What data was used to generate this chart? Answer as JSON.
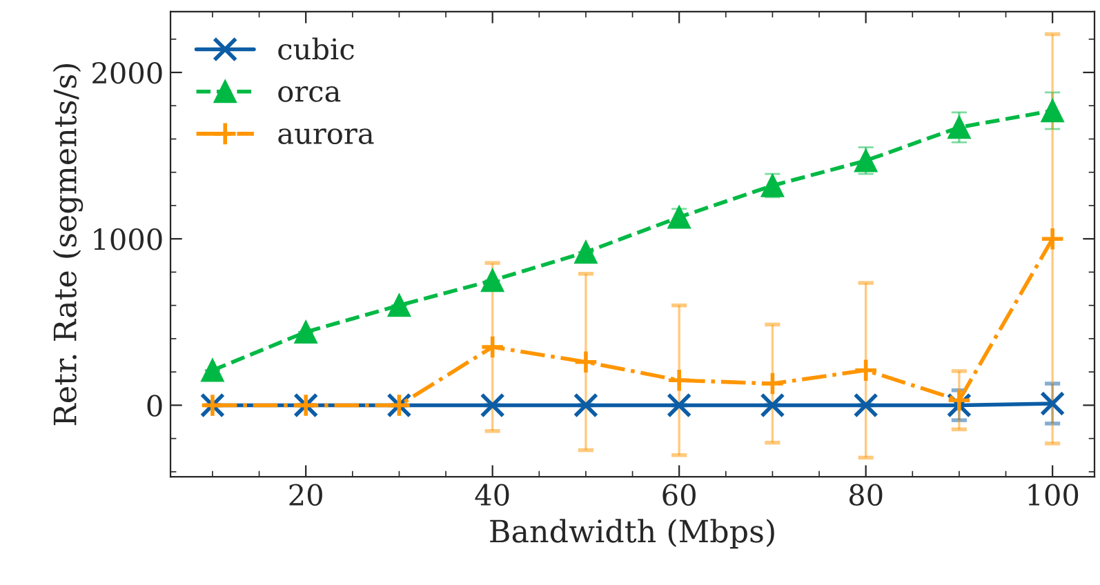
{
  "chart_data": {
    "type": "line",
    "xlabel": "Bandwidth (Mbps)",
    "ylabel": "Retr. Rate (segments/s)",
    "x": [
      10,
      20,
      30,
      40,
      50,
      60,
      70,
      80,
      90,
      100
    ],
    "xlim": [
      5.5,
      104.5
    ],
    "xticks": [
      20,
      40,
      60,
      80,
      100
    ],
    "ylim": [
      -430,
      2365
    ],
    "yticks": [
      0,
      1000,
      2000
    ],
    "legend": "top left",
    "grid": false,
    "series": [
      {
        "name": "cubic",
        "color": "#0c5da5",
        "marker": "cross",
        "line_style": "solid",
        "values": [
          0,
          0,
          0,
          0,
          0,
          0,
          0,
          0,
          0,
          10
        ],
        "errors": [
          null,
          null,
          null,
          null,
          null,
          null,
          null,
          null,
          90,
          120
        ]
      },
      {
        "name": "orca",
        "color": "#00b945",
        "marker": "triangle",
        "line_style": "dashed",
        "values": [
          210,
          440,
          600,
          750,
          920,
          1130,
          1320,
          1470,
          1670,
          1770
        ],
        "errors": [
          null,
          null,
          null,
          null,
          null,
          50,
          70,
          80,
          90,
          110
        ]
      },
      {
        "name": "aurora",
        "color": "#ff9500",
        "marker": "plus",
        "line_style": "dashdot",
        "values": [
          0,
          0,
          0,
          350,
          260,
          150,
          130,
          210,
          30,
          1000
        ],
        "errors": [
          null,
          null,
          null,
          505,
          530,
          450,
          355,
          525,
          175,
          1230
        ]
      }
    ]
  }
}
